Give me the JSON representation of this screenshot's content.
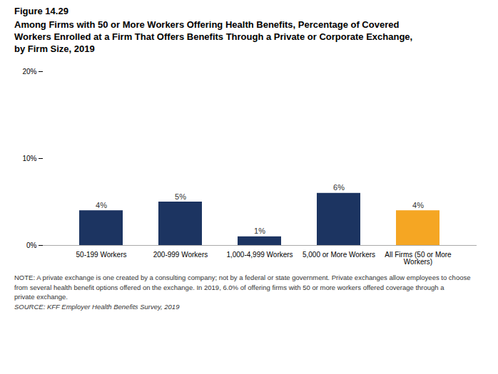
{
  "chart_data": {
    "type": "bar",
    "title": "Figure 14.29",
    "subtitle": "Among Firms with 50 or More Workers Offering Health Benefits, Percentage of Covered\nWorkers Enrolled at a Firm That Offers Benefits Through a Private or Corporate Exchange,\nby Firm Size, 2019",
    "categories": [
      "50-199 Workers",
      "200-999 Workers",
      "1,000-4,999 Workers",
      "5,000 or More Workers",
      "All Firms (50 or More\nWorkers)"
    ],
    "values": [
      4,
      5,
      1,
      6,
      4
    ],
    "value_labels": [
      "4%",
      "5%",
      "1%",
      "6%",
      "4%"
    ],
    "colors": [
      "#1c3461",
      "#1c3461",
      "#1c3461",
      "#1c3461",
      "#f5a623"
    ],
    "data_labels": true,
    "ylim": [
      0,
      20
    ],
    "yticks": [
      {
        "value": 0,
        "label": "0%"
      },
      {
        "value": 10,
        "label": "10%"
      },
      {
        "value": 20,
        "label": "20%"
      }
    ],
    "grid": false,
    "notes": [
      "NOTE: A private exchange is one created by a consulting company; not by a federal or state government. Private exchanges allow employees to choose",
      "from several health benefit options offered on the exchange. In 2019, 6.0% of offering firms with 50 or more workers offered coverage through a",
      "private exchange."
    ],
    "source": "SOURCE: KFF Employer Health Benefits Survey, 2019"
  }
}
